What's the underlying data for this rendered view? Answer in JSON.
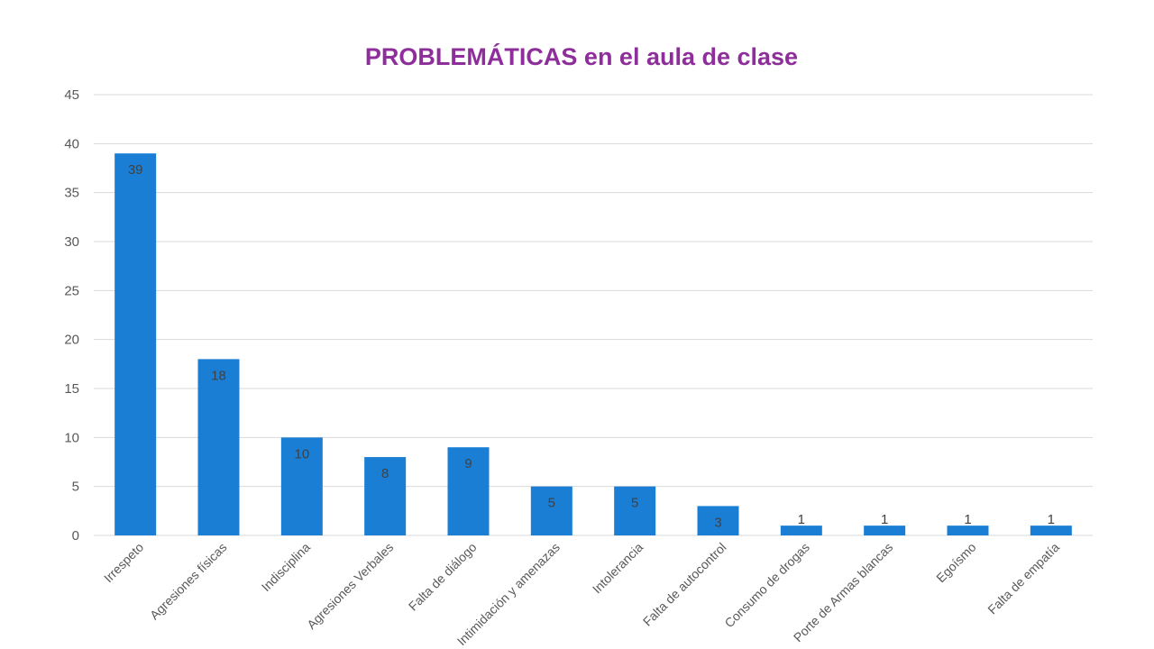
{
  "chart_data": {
    "type": "bar",
    "title": "PROBLEMÁTICAS en el aula de clase",
    "xlabel": "",
    "ylabel": "",
    "ylim": [
      0,
      45
    ],
    "yticks": [
      0,
      5,
      10,
      15,
      20,
      25,
      30,
      35,
      40,
      45
    ],
    "grid": true,
    "legend": "none",
    "categories": [
      "Irrespeto",
      "Agresiones físicas",
      "Indisciplina",
      "Agresiones Verbales",
      "Falta de diálogo",
      "Intimidación y amenazas",
      "Intolerancia",
      "Falta de autocontrol",
      "Consumo de drogas",
      "Porte de Armas blancas",
      "Egoísmo",
      "Falta de empatía"
    ],
    "values": [
      39,
      18,
      10,
      8,
      9,
      5,
      5,
      3,
      1,
      1,
      1,
      1
    ],
    "bar_color": "#1a7fd4",
    "title_color": "#8e2e9b"
  }
}
